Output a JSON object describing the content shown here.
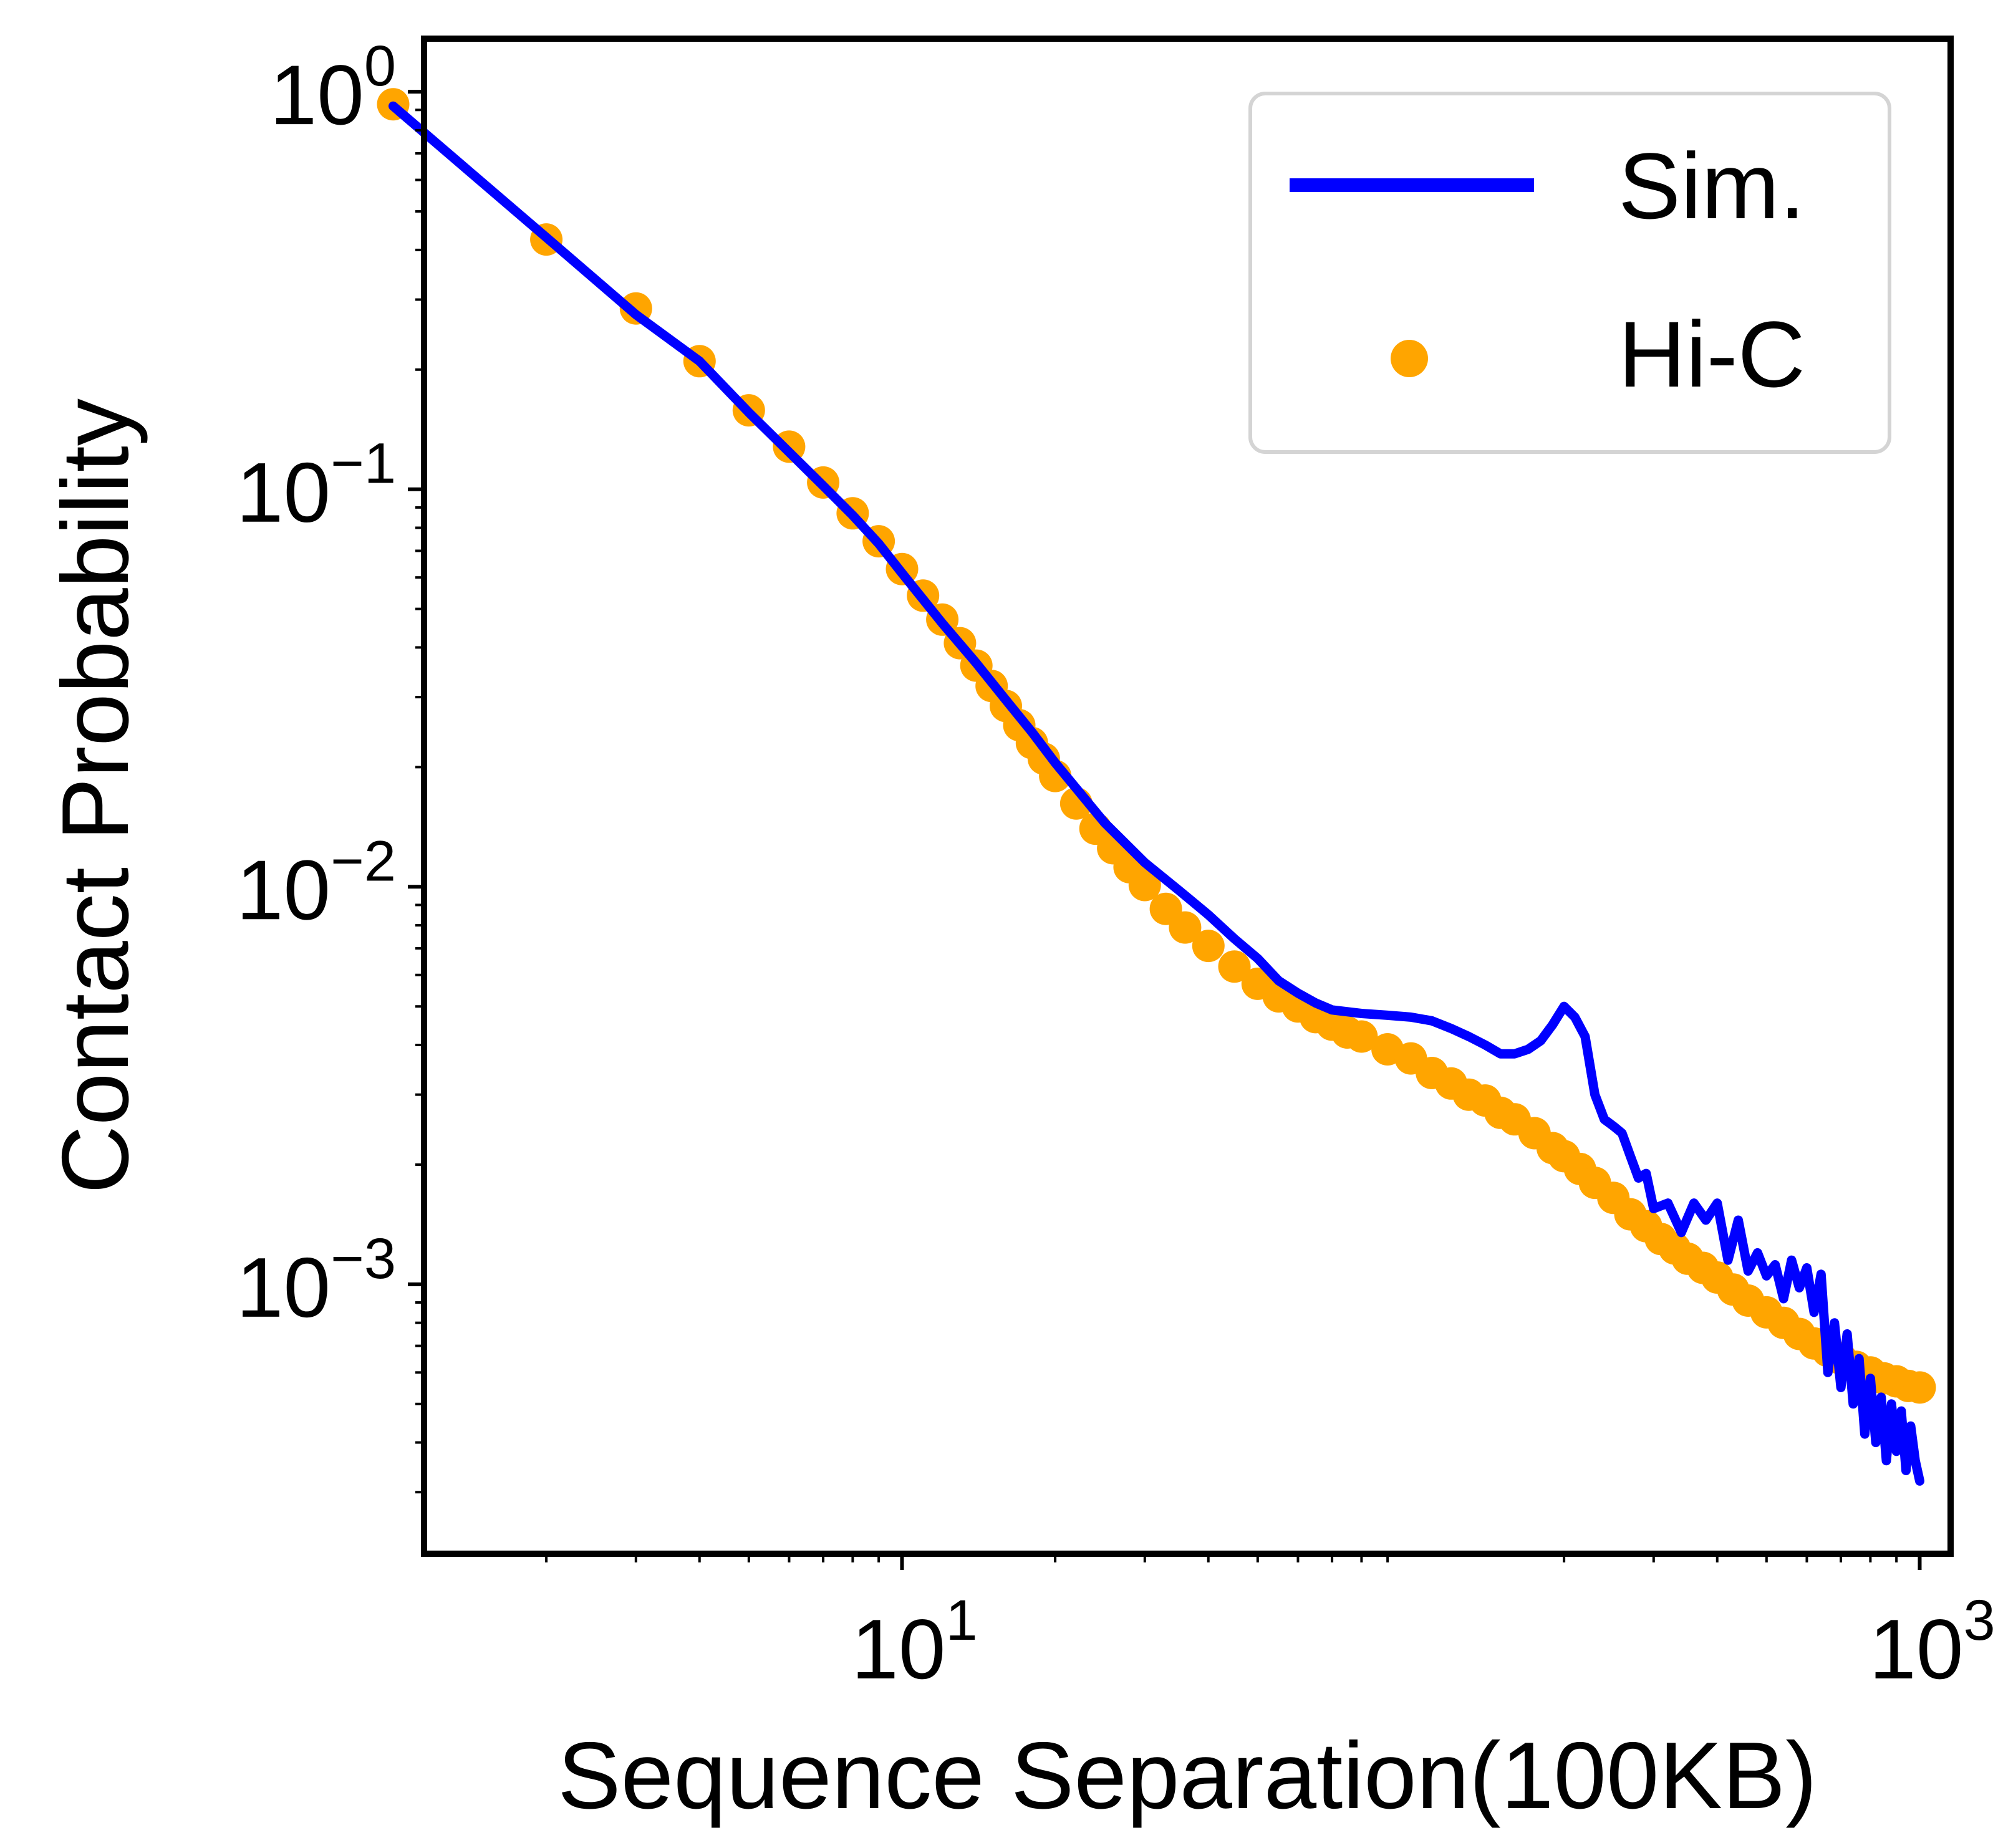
{
  "chart_data": {
    "type": "line",
    "title": "",
    "xlabel": "Sequence Separation(100KB)",
    "ylabel": "Contact Probability",
    "xscale": "log",
    "yscale": "log",
    "xlim": [
      1.15,
      1150
    ],
    "ylim": [
      0.00021,
      1.36
    ],
    "xticks": [
      {
        "value": 10,
        "base": "10",
        "exponent": "1"
      },
      {
        "value": 1000,
        "base": "10",
        "exponent": "3"
      }
    ],
    "yticks": [
      {
        "value": 1,
        "base": "10",
        "exponent": "0"
      },
      {
        "value": 0.1,
        "base": "10",
        "exponent": "−1"
      },
      {
        "value": 0.01,
        "base": "10",
        "exponent": "−2"
      },
      {
        "value": 0.001,
        "base": "10",
        "exponent": "−3"
      }
    ],
    "grid": false,
    "legend": "top-right",
    "series": [
      {
        "name": "Sim.",
        "kind": "line",
        "color": "#0000ff",
        "x": [
          1,
          2,
          3,
          4,
          5,
          6,
          7,
          8,
          9,
          10,
          12,
          14,
          16,
          18,
          20,
          25,
          30,
          35,
          40,
          45,
          50,
          55,
          60,
          65,
          70,
          80,
          90,
          100,
          110,
          120,
          130,
          140,
          150,
          160,
          170,
          180,
          190,
          200,
          210,
          220,
          230,
          240,
          250,
          260,
          270,
          280,
          290,
          300,
          320,
          340,
          360,
          380,
          400,
          420,
          440,
          460,
          480,
          500,
          520,
          540,
          560,
          580,
          600,
          620,
          640,
          660,
          680,
          700,
          720,
          740,
          760,
          780,
          800,
          820,
          840,
          860,
          880,
          900,
          920,
          940,
          960,
          980,
          1000
        ],
        "y": [
          0.92,
          0.43,
          0.275,
          0.21,
          0.156,
          0.124,
          0.102,
          0.086,
          0.073,
          0.0615,
          0.046,
          0.0365,
          0.0295,
          0.0245,
          0.0205,
          0.0145,
          0.0115,
          0.0098,
          0.0085,
          0.0074,
          0.0066,
          0.0058,
          0.0054,
          0.0051,
          0.0049,
          0.0048,
          0.00475,
          0.0047,
          0.0046,
          0.0044,
          0.0042,
          0.004,
          0.0038,
          0.0038,
          0.0039,
          0.0041,
          0.0045,
          0.005,
          0.0047,
          0.0042,
          0.003,
          0.0026,
          0.0025,
          0.0024,
          0.0021,
          0.00185,
          0.0019,
          0.00155,
          0.0016,
          0.00135,
          0.0016,
          0.00145,
          0.0016,
          0.00115,
          0.00145,
          0.00108,
          0.0012,
          0.00105,
          0.00112,
          0.00092,
          0.00115,
          0.00098,
          0.0011,
          0.00085,
          0.00106,
          0.0006,
          0.0008,
          0.00055,
          0.00075,
          0.0005,
          0.00065,
          0.00042,
          0.00058,
          0.0004,
          0.00052,
          0.00036,
          0.0005,
          0.00038,
          0.00048,
          0.00034,
          0.00044,
          0.00036,
          0.00032
        ]
      },
      {
        "name": "Hi-C",
        "kind": "scatter",
        "color": "#ffa500",
        "x": [
          1,
          2,
          3,
          4,
          5,
          6,
          7,
          8,
          9,
          10,
          11,
          12,
          13,
          14,
          15,
          16,
          17,
          18,
          19,
          20,
          22,
          24,
          26,
          28,
          30,
          33,
          36,
          40,
          45,
          50,
          55,
          60,
          65,
          70,
          75,
          80,
          90,
          100,
          110,
          120,
          130,
          140,
          150,
          160,
          175,
          190,
          200,
          215,
          230,
          250,
          270,
          290,
          310,
          330,
          350,
          375,
          400,
          430,
          460,
          500,
          540,
          580,
          620,
          660,
          700,
          750,
          800,
          850,
          900,
          950,
          1000
        ],
        "y": [
          0.93,
          0.425,
          0.285,
          0.21,
          0.158,
          0.128,
          0.104,
          0.087,
          0.074,
          0.063,
          0.054,
          0.047,
          0.041,
          0.036,
          0.032,
          0.0285,
          0.0255,
          0.023,
          0.021,
          0.019,
          0.0162,
          0.014,
          0.0125,
          0.0112,
          0.0101,
          0.0088,
          0.0079,
          0.0071,
          0.0063,
          0.0057,
          0.0053,
          0.005,
          0.0047,
          0.0045,
          0.0043,
          0.0042,
          0.0039,
          0.0037,
          0.0034,
          0.0032,
          0.003,
          0.0029,
          0.0027,
          0.0026,
          0.0024,
          0.0022,
          0.0021,
          0.00195,
          0.0018,
          0.00165,
          0.0015,
          0.0014,
          0.0013,
          0.00123,
          0.00116,
          0.0011,
          0.00104,
          0.00097,
          0.00091,
          0.00085,
          0.0008,
          0.00075,
          0.00071,
          0.00068,
          0.00065,
          0.00062,
          0.0006,
          0.00058,
          0.00057,
          0.000555,
          0.00055
        ]
      }
    ]
  }
}
